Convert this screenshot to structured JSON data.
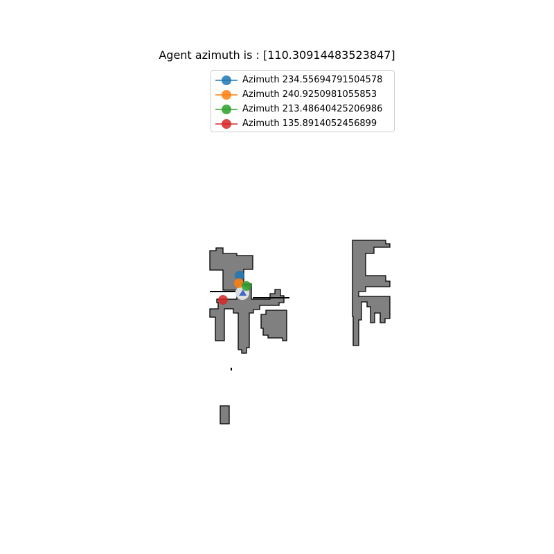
{
  "title": "Agent azimuth is : [110.30914483523847]",
  "legend": [
    {
      "label": "Azimuth 234.55694791504578",
      "color": "#1f77b4"
    },
    {
      "label": "Azimuth 240.9250981055853",
      "color": "#ff7f0e"
    },
    {
      "label": "Azimuth 213.48640425206986",
      "color": "#2ca02c"
    },
    {
      "label": "Azimuth 135.8914052456899",
      "color": "#d62728"
    }
  ],
  "map": {
    "fill_color": "#808080",
    "edge_color": "#000000"
  },
  "agent": {
    "marker_color": "#4169c8",
    "halo_color": "#e8e8e8"
  }
}
